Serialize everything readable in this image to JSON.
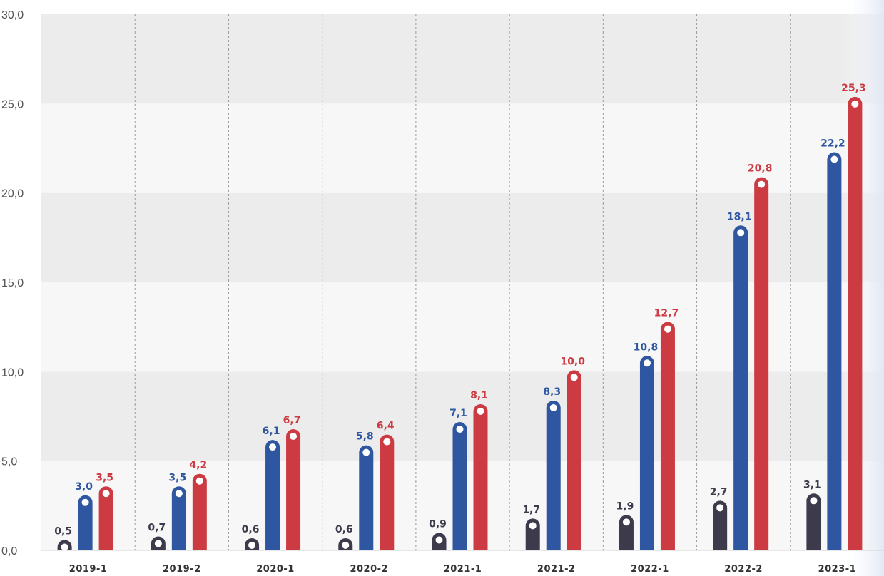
{
  "chart_data": {
    "type": "bar",
    "title": "",
    "xlabel": "",
    "ylabel": "",
    "ylim": [
      0,
      30
    ],
    "yticks": [
      "0,0",
      "5,0",
      "10,0",
      "15,0",
      "20,0",
      "25,0",
      "30,0"
    ],
    "grid": true,
    "categories": [
      "2019-1",
      "2019-2",
      "2020-1",
      "2020-2",
      "2021-1",
      "2021-2",
      "2022-1",
      "2022-2",
      "2023-1"
    ],
    "series": [
      {
        "color": "#3d3a4b",
        "values": [
          0.5,
          0.7,
          0.6,
          0.6,
          0.9,
          1.7,
          1.9,
          2.7,
          3.1
        ],
        "labels": [
          "0,5",
          "0,7",
          "0,6",
          "0,6",
          "0,9",
          "1,7",
          "1,9",
          "2,7",
          "3,1"
        ]
      },
      {
        "color": "#2f56a0",
        "values": [
          3.0,
          3.5,
          6.1,
          5.8,
          7.1,
          8.3,
          10.8,
          18.1,
          22.2
        ],
        "labels": [
          "3,0",
          "3,5",
          "6,1",
          "5,8",
          "7,1",
          "8,3",
          "10,8",
          "18,1",
          "22,2"
        ]
      },
      {
        "color": "#cc3a42",
        "values": [
          3.5,
          4.2,
          6.7,
          6.4,
          8.1,
          10.0,
          12.7,
          20.8,
          25.3
        ],
        "labels": [
          "3,5",
          "4,2",
          "6,7",
          "6,4",
          "8,1",
          "10,0",
          "12,7",
          "20,8",
          "25,3"
        ]
      }
    ]
  }
}
